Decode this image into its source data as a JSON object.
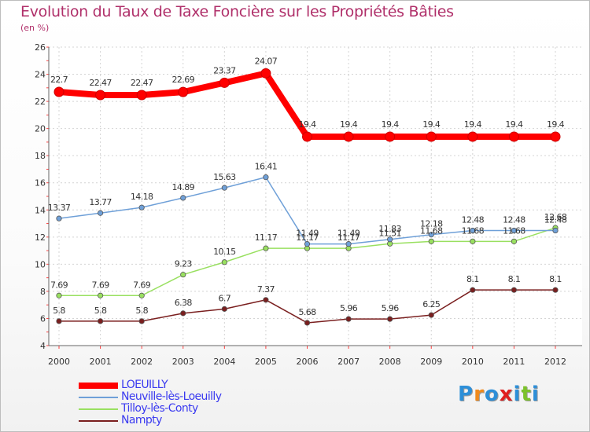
{
  "chart_data": {
    "type": "line",
    "title": "Evolution du Taux de Taxe Foncière sur les Propriétés Bâties",
    "ylabel": "(en %)",
    "xlabel": "",
    "x": [
      "2000",
      "2001",
      "2002",
      "2003",
      "2004",
      "2005",
      "2006",
      "2007",
      "2008",
      "2009",
      "2010",
      "2011",
      "2012"
    ],
    "ylim": [
      4,
      26
    ],
    "yticks": [
      "4",
      "6",
      "8",
      "10",
      "12",
      "14",
      "16",
      "18",
      "20",
      "22",
      "24",
      "26"
    ],
    "grid": true,
    "series": [
      {
        "name": "LOEUILLY",
        "color": "#ff0000",
        "values": [
          22.7,
          22.47,
          22.47,
          22.69,
          23.37,
          24.07,
          19.4,
          19.4,
          19.4,
          19.4,
          19.4,
          19.4,
          19.4
        ],
        "labels": [
          "22.7",
          "22.47",
          "22.47",
          "22.69",
          "23.37",
          "24.07",
          "19.4",
          "19.4",
          "19.4",
          "19.4",
          "19.4",
          "19.4",
          "19.4"
        ]
      },
      {
        "name": "Neuville-lès-Loeuilly",
        "color": "#6fa0d8",
        "values": [
          13.37,
          13.77,
          14.18,
          14.89,
          15.63,
          16.41,
          11.49,
          11.49,
          11.83,
          12.18,
          12.48,
          12.48,
          12.48
        ],
        "labels": [
          "13.37",
          "13.77",
          "14.18",
          "14.89",
          "15.63",
          "16.41",
          "11.49",
          "11.49",
          "11.83",
          "12.18",
          "12.48",
          "12.48",
          "12.48"
        ]
      },
      {
        "name": "Tilloy-lès-Conty",
        "color": "#99e060",
        "values": [
          7.69,
          7.69,
          7.69,
          9.23,
          10.15,
          11.17,
          11.17,
          11.17,
          11.51,
          11.68,
          11.68,
          11.68,
          12.68
        ],
        "labels": [
          "7.69",
          "7.69",
          "7.69",
          "9.23",
          "10.15",
          "11.17",
          "11.17",
          "11.17",
          "11.51",
          "11.68",
          "11.68",
          "11.68",
          "12.68"
        ]
      },
      {
        "name": "Nampty",
        "color": "#7a1f1f",
        "values": [
          5.8,
          5.8,
          5.8,
          6.38,
          6.7,
          7.37,
          5.68,
          5.96,
          5.96,
          6.25,
          8.1,
          8.1,
          8.1
        ],
        "labels": [
          "5.8",
          "5.8",
          "5.8",
          "6.38",
          "6.7",
          "7.37",
          "5.68",
          "5.96",
          "5.96",
          "6.25",
          "8.1",
          "8.1",
          "8.1"
        ]
      }
    ],
    "legend_position": "bottom-left"
  },
  "logo": {
    "text": [
      "P",
      "r",
      "o",
      "x",
      "i",
      "t",
      "i"
    ],
    "colors": [
      "#2d8fd8",
      "#f08a1c",
      "#2d8fd8",
      "#e02020",
      "#2d8fd8",
      "#7cc22a",
      "#2d8fd8"
    ]
  }
}
